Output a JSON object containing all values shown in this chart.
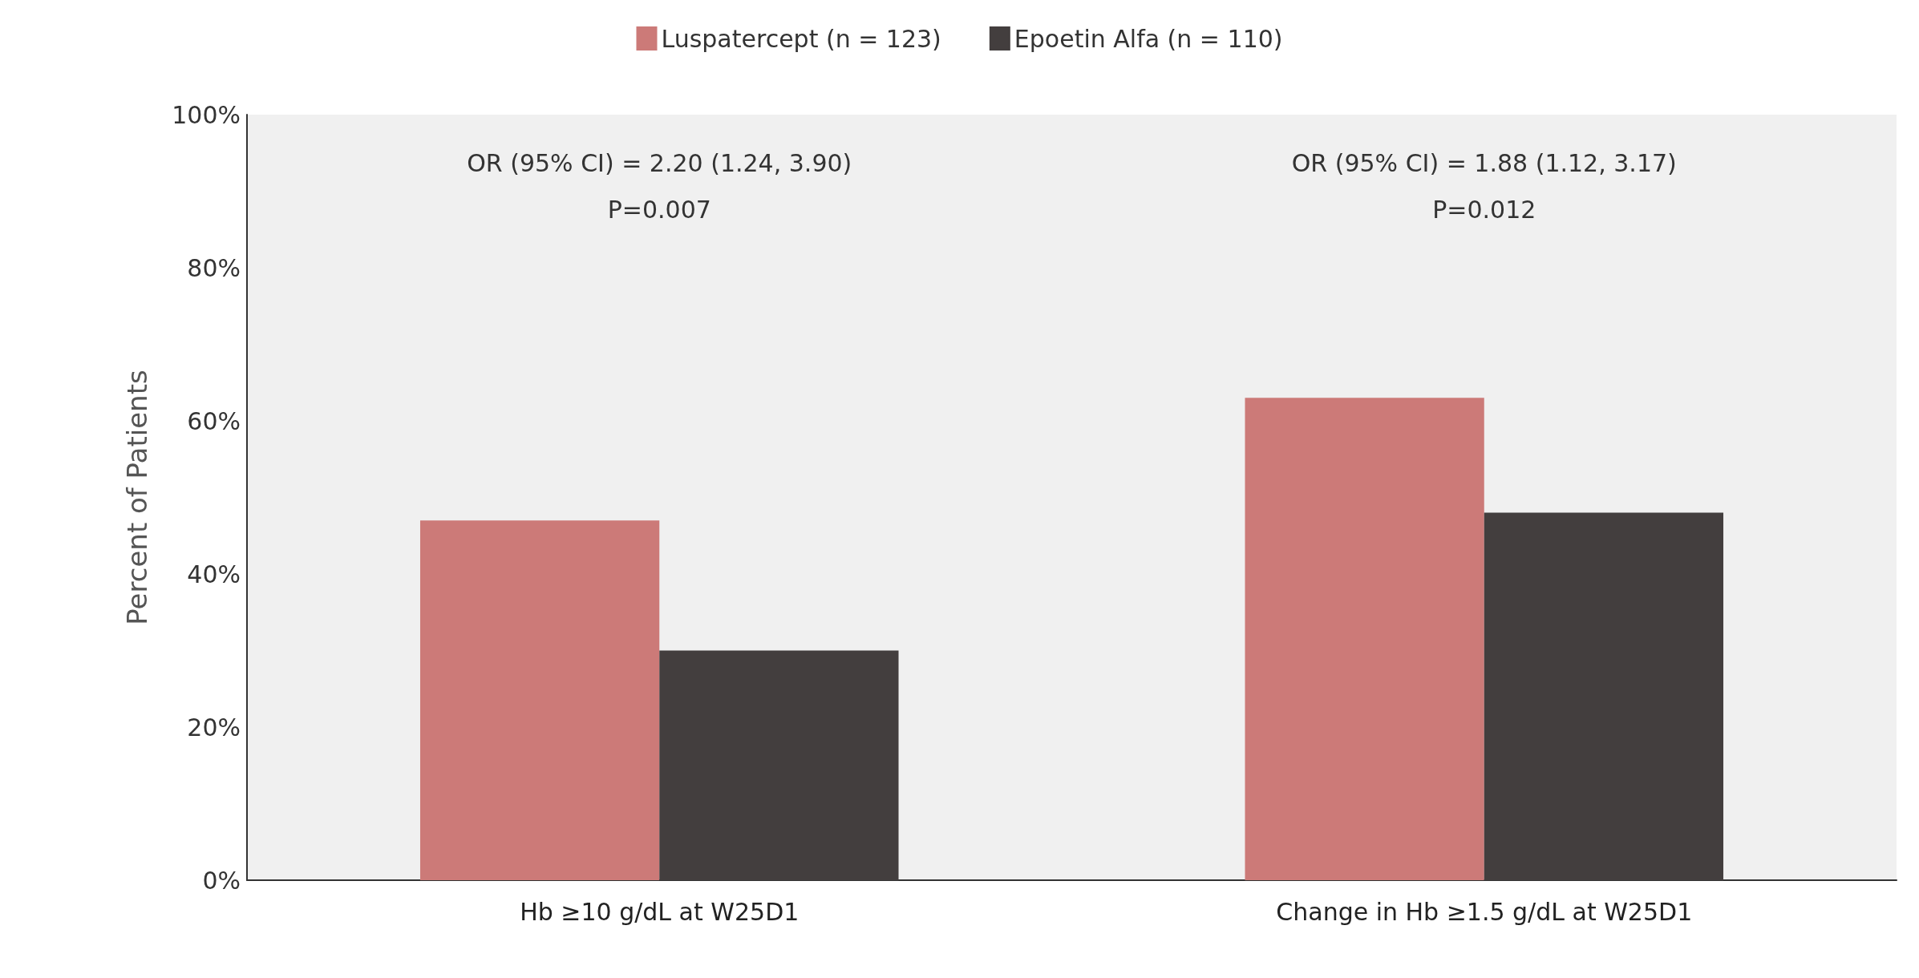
{
  "chart_data": {
    "type": "bar",
    "ylabel": "Percent of Patients",
    "categories": [
      "Hb ≥10 g/dL at W25D1",
      "Change in Hb ≥1.5 g/dL at W25D1"
    ],
    "series": [
      {
        "name": "Luspatercept (n = 123)",
        "color": "#cc7a78",
        "values": [
          47,
          63
        ]
      },
      {
        "name": "Epoetin Alfa (n = 110)",
        "color": "#433e3e",
        "values": [
          30,
          48
        ]
      }
    ],
    "ylim": [
      0,
      100
    ],
    "yticks": [
      {
        "value": 0,
        "label": "0%"
      },
      {
        "value": 20,
        "label": "20%"
      },
      {
        "value": 40,
        "label": "40%"
      },
      {
        "value": 60,
        "label": "60%"
      },
      {
        "value": 80,
        "label": "80%"
      },
      {
        "value": 100,
        "label": "100%"
      }
    ],
    "annotations": [
      "OR (95% CI) = 2.20 (1.24, 3.90)",
      "P=0.007",
      "OR (95% CI) = 1.88 (1.12, 3.17)",
      "P=0.012"
    ],
    "grid": false,
    "legend": "top"
  }
}
